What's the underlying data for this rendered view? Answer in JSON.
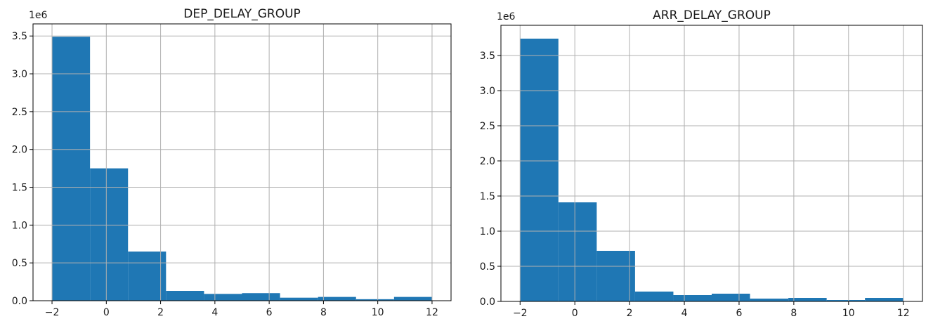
{
  "chart_data": [
    {
      "type": "bar",
      "title": "DEP_DELAY_GROUP",
      "offset_text": "1e6",
      "xlim": [
        -2.7,
        12.7
      ],
      "ylim": [
        0,
        3.66
      ],
      "xticks": [
        -2,
        0,
        2,
        4,
        6,
        8,
        10,
        12
      ],
      "yticks": [
        0.0,
        0.5,
        1.0,
        1.5,
        2.0,
        2.5,
        3.0,
        3.5
      ],
      "xtick_labels": [
        "−2",
        "0",
        "2",
        "4",
        "6",
        "8",
        "10",
        "12"
      ],
      "ytick_labels": [
        "0.0",
        "0.5",
        "1.0",
        "1.5",
        "2.0",
        "2.5",
        "3.0",
        "3.5"
      ],
      "bin_edges": [
        -2.0,
        -0.6,
        0.8,
        2.2,
        3.6,
        5.0,
        6.4,
        7.8,
        9.2,
        10.6,
        12.0
      ],
      "values": [
        3.49,
        1.75,
        0.65,
        0.13,
        0.09,
        0.1,
        0.04,
        0.05,
        0.02,
        0.05
      ],
      "grid": true,
      "bar_color": "#1f77b4"
    },
    {
      "type": "bar",
      "title": "ARR_DELAY_GROUP",
      "offset_text": "1e6",
      "xlim": [
        -2.7,
        12.7
      ],
      "ylim": [
        0,
        3.93
      ],
      "xticks": [
        -2,
        0,
        2,
        4,
        6,
        8,
        10,
        12
      ],
      "yticks": [
        0.0,
        0.5,
        1.0,
        1.5,
        2.0,
        2.5,
        3.0,
        3.5
      ],
      "xtick_labels": [
        "−2",
        "0",
        "2",
        "4",
        "6",
        "8",
        "10",
        "12"
      ],
      "ytick_labels": [
        "0.0",
        "0.5",
        "1.0",
        "1.5",
        "2.0",
        "2.5",
        "3.0",
        "3.5"
      ],
      "bin_edges": [
        -2.0,
        -0.6,
        0.8,
        2.2,
        3.6,
        5.0,
        6.4,
        7.8,
        9.2,
        10.6,
        12.0
      ],
      "values": [
        3.74,
        1.41,
        0.72,
        0.14,
        0.09,
        0.11,
        0.04,
        0.05,
        0.02,
        0.05
      ],
      "grid": true,
      "bar_color": "#1f77b4"
    }
  ]
}
